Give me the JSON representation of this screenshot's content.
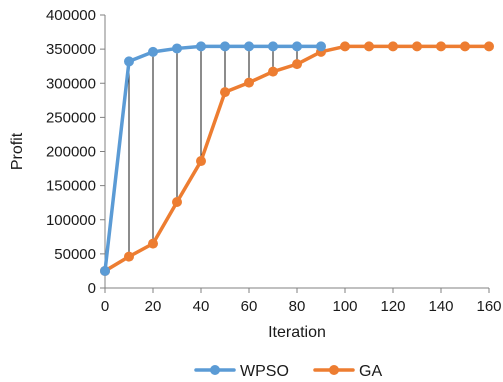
{
  "chart_data": {
    "type": "line",
    "title": "",
    "xlabel": "Iteration",
    "ylabel": "Profit",
    "xlim": [
      0,
      160
    ],
    "ylim": [
      0,
      400000
    ],
    "x_ticks": [
      0,
      20,
      40,
      60,
      80,
      100,
      120,
      140,
      160
    ],
    "y_ticks": [
      0,
      50000,
      100000,
      150000,
      200000,
      250000,
      300000,
      350000,
      400000
    ],
    "grid": false,
    "legend_position": "bottom",
    "colors": {
      "WPSO": "#5b9bd5",
      "GA": "#ed7d31",
      "connector": "#1a1a1a"
    },
    "series": [
      {
        "name": "WPSO",
        "x": [
          0,
          10,
          20,
          30,
          40,
          50,
          60,
          70,
          80,
          90
        ],
        "y": [
          25000,
          332000,
          346000,
          351000,
          354000,
          354000,
          354000,
          354000,
          354000,
          354000
        ]
      },
      {
        "name": "GA",
        "x": [
          0,
          10,
          20,
          30,
          40,
          50,
          60,
          70,
          80,
          90,
          100,
          110,
          120,
          130,
          140,
          150,
          160
        ],
        "y": [
          25000,
          46000,
          65000,
          126000,
          186000,
          287000,
          301000,
          317000,
          328000,
          346000,
          354000,
          354000,
          354000,
          354000,
          354000,
          354000,
          354000
        ]
      }
    ]
  }
}
